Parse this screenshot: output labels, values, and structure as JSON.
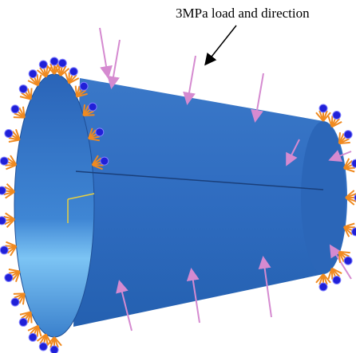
{
  "annotation": {
    "text": "3MPa load and direction"
  }
}
